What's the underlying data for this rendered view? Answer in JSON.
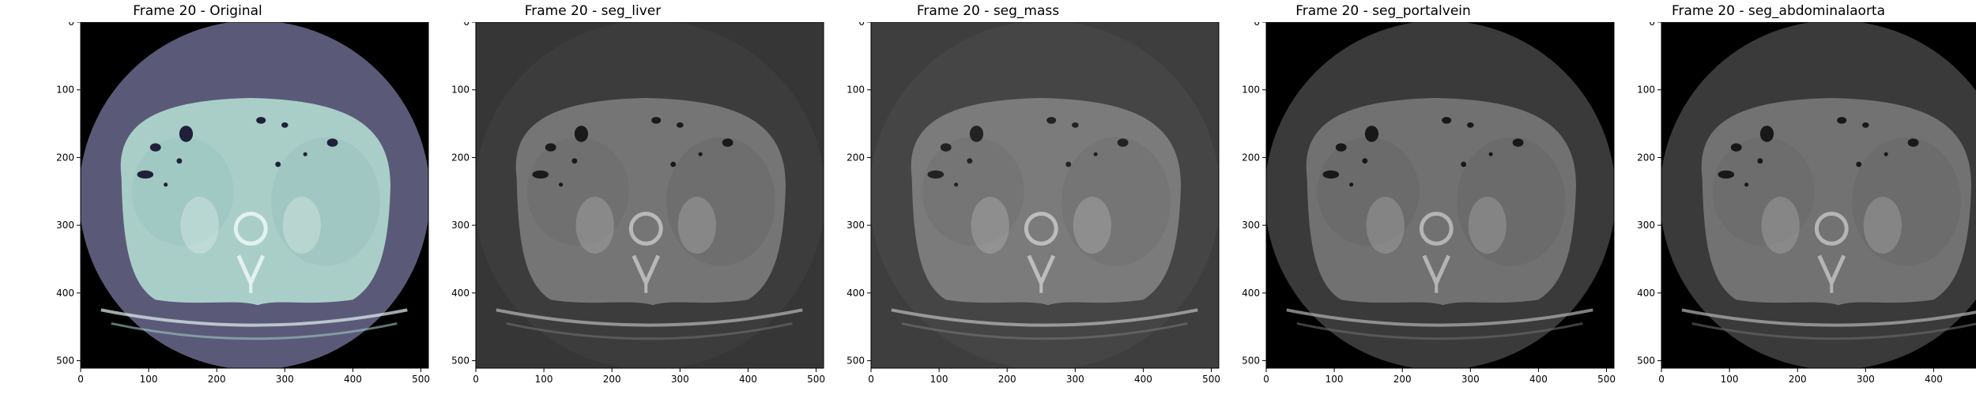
{
  "panels": [
    {
      "title": "Frame 20 - Original",
      "colormap": "bone",
      "bg": "#000000",
      "disc": "#5a5a78",
      "body": "#a9cec8",
      "tissue": "#9ec7c0",
      "dark": "#20203a",
      "bone": "#e4f2ef"
    },
    {
      "title": "Frame 20 - seg_liver",
      "colormap": "gray",
      "bg": "#363636",
      "disc": "#3c3c3c",
      "body": "#757575",
      "tissue": "#6e6e6e",
      "dark": "#1a1a1a",
      "bone": "#b8b8b8"
    },
    {
      "title": "Frame 20 - seg_mass",
      "colormap": "gray",
      "bg": "#3e3e3e",
      "disc": "#454545",
      "body": "#7b7b7b",
      "tissue": "#747474",
      "dark": "#222222",
      "bone": "#bdbdbd"
    },
    {
      "title": "Frame 20 - seg_portalvein",
      "colormap": "gray",
      "bg": "#000000",
      "disc": "#3a3a3a",
      "body": "#717171",
      "tissue": "#6a6a6a",
      "dark": "#181818",
      "bone": "#b4b4b4"
    },
    {
      "title": "Frame 20 - seg_abdominalaorta",
      "colormap": "gray",
      "bg": "#000000",
      "disc": "#3a3a3a",
      "body": "#727272",
      "tissue": "#6b6b6b",
      "dark": "#181818",
      "bone": "#b5b5b5"
    }
  ],
  "axes": {
    "x_ticks": [
      "0",
      "100",
      "200",
      "300",
      "400",
      "500"
    ],
    "y_ticks": [
      "0",
      "100",
      "200",
      "300",
      "400",
      "500"
    ],
    "xlim": [
      0,
      511
    ],
    "ylim": [
      511,
      0
    ]
  }
}
